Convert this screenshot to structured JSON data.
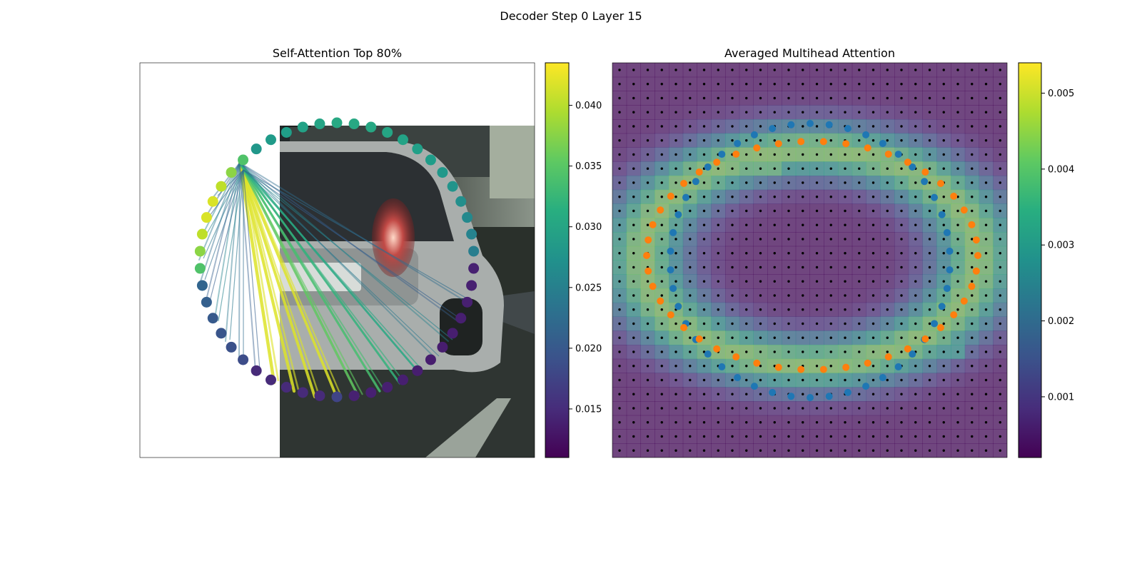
{
  "figure": {
    "suptitle": "Decoder Step 0 Layer 15"
  },
  "panels": [
    {
      "title": "Self-Attention Top 80%",
      "colorbar": {
        "colormap": "viridis",
        "range": [
          0.011,
          0.0435
        ],
        "ticks": [
          "0.015",
          "0.020",
          "0.025",
          "0.030",
          "0.035",
          "0.040"
        ]
      }
    },
    {
      "title": "Averaged Multihead Attention",
      "colorbar": {
        "colormap": "viridis",
        "range": [
          0.0002,
          0.0054
        ],
        "ticks": [
          "0.001",
          "0.002",
          "0.003",
          "0.004",
          "0.005"
        ]
      }
    }
  ],
  "colors": {
    "blue_points": "#1f77b4",
    "orange_points": "#ff7f0e",
    "grid_dots": "#000000"
  }
}
